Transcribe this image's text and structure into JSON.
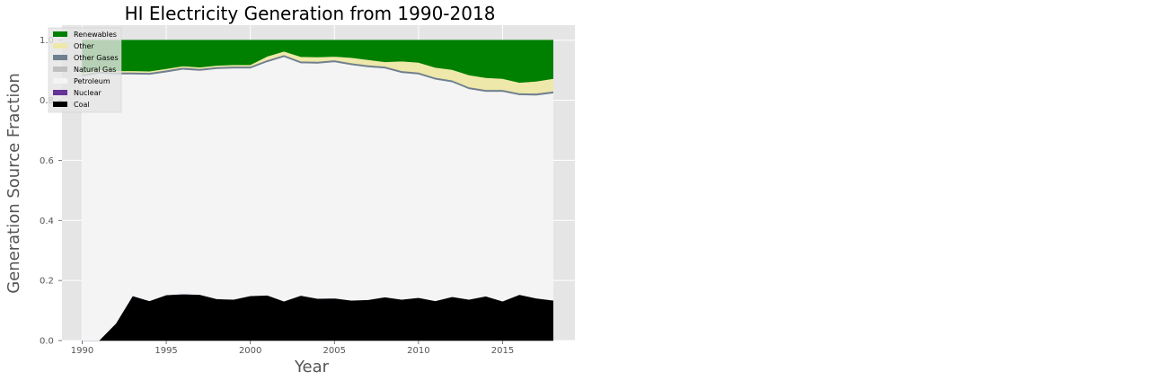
{
  "chart_data": {
    "type": "area",
    "title": "HI Electricity Generation from 1990-2018",
    "xlabel": "Year",
    "ylabel": "Generation Source Fraction",
    "xlim": [
      1988.8,
      2019.3
    ],
    "ylim": [
      0,
      1.05
    ],
    "xticks": [
      1990,
      1995,
      2000,
      2005,
      2010,
      2015
    ],
    "yticks": [
      "0.0",
      "0.2",
      "0.4",
      "0.6",
      "0.8",
      "1.0"
    ],
    "grid": true,
    "stacked": true,
    "legend_position": "top-left",
    "x": [
      1990,
      1991,
      1992,
      1993,
      1994,
      1995,
      1996,
      1997,
      1998,
      1999,
      2000,
      2001,
      2002,
      2003,
      2004,
      2005,
      2006,
      2007,
      2008,
      2009,
      2010,
      2011,
      2012,
      2013,
      2014,
      2015,
      2016,
      2017,
      2018
    ],
    "series": [
      {
        "name": "Coal",
        "color": "#000000",
        "values": [
          0.0,
          0.0,
          0.057,
          0.149,
          0.132,
          0.152,
          0.155,
          0.153,
          0.139,
          0.137,
          0.149,
          0.151,
          0.131,
          0.15,
          0.14,
          0.141,
          0.134,
          0.136,
          0.145,
          0.137,
          0.143,
          0.132,
          0.146,
          0.137,
          0.148,
          0.131,
          0.153,
          0.141,
          0.134
        ]
      },
      {
        "name": "Nuclear",
        "color": "#663399",
        "values": [
          0,
          0,
          0,
          0,
          0,
          0,
          0,
          0,
          0,
          0,
          0,
          0,
          0,
          0,
          0,
          0,
          0,
          0,
          0,
          0,
          0,
          0,
          0,
          0,
          0,
          0,
          0,
          0,
          0
        ]
      },
      {
        "name": "Petroleum",
        "color": "#f4f4f4",
        "values": [
          0.88,
          0.89,
          0.83,
          0.738,
          0.754,
          0.742,
          0.748,
          0.746,
          0.766,
          0.77,
          0.758,
          0.777,
          0.814,
          0.774,
          0.783,
          0.787,
          0.784,
          0.775,
          0.762,
          0.755,
          0.744,
          0.738,
          0.715,
          0.701,
          0.681,
          0.698,
          0.665,
          0.676,
          0.69
        ]
      },
      {
        "name": "Natural Gas",
        "color": "#c0c0c0",
        "values": [
          0,
          0,
          0,
          0,
          0,
          0,
          0,
          0,
          0,
          0,
          0,
          0,
          0,
          0,
          0,
          0,
          0,
          0,
          0,
          0,
          0,
          0,
          0,
          0,
          0,
          0,
          0,
          0,
          0
        ]
      },
      {
        "name": "Other Gases",
        "color": "#708090",
        "values": [
          0.006,
          0.006,
          0.006,
          0.006,
          0.006,
          0.006,
          0.006,
          0.006,
          0.006,
          0.006,
          0.006,
          0.006,
          0.006,
          0.006,
          0.006,
          0.006,
          0.006,
          0.006,
          0.006,
          0.006,
          0.006,
          0.006,
          0.006,
          0.006,
          0.006,
          0.006,
          0.006,
          0.006,
          0.006
        ]
      },
      {
        "name": "Other",
        "color": "#eee8aa",
        "values": [
          0.005,
          0.005,
          0.005,
          0.005,
          0.005,
          0.005,
          0.005,
          0.005,
          0.005,
          0.005,
          0.005,
          0.012,
          0.012,
          0.015,
          0.015,
          0.012,
          0.018,
          0.018,
          0.015,
          0.032,
          0.033,
          0.033,
          0.035,
          0.04,
          0.04,
          0.037,
          0.035,
          0.04,
          0.042
        ]
      },
      {
        "name": "Renewables",
        "color": "#008000",
        "values": [
          0.109,
          0.099,
          0.102,
          0.102,
          0.103,
          0.095,
          0.086,
          0.09,
          0.084,
          0.082,
          0.082,
          0.054,
          0.037,
          0.055,
          0.056,
          0.054,
          0.058,
          0.065,
          0.072,
          0.07,
          0.074,
          0.091,
          0.098,
          0.116,
          0.125,
          0.128,
          0.141,
          0.137,
          0.128
        ]
      }
    ]
  },
  "colors": {
    "plot_background": "#e5e5e5",
    "grid": "#ffffff",
    "tick_text": "#555555",
    "title_text": "#000000"
  }
}
